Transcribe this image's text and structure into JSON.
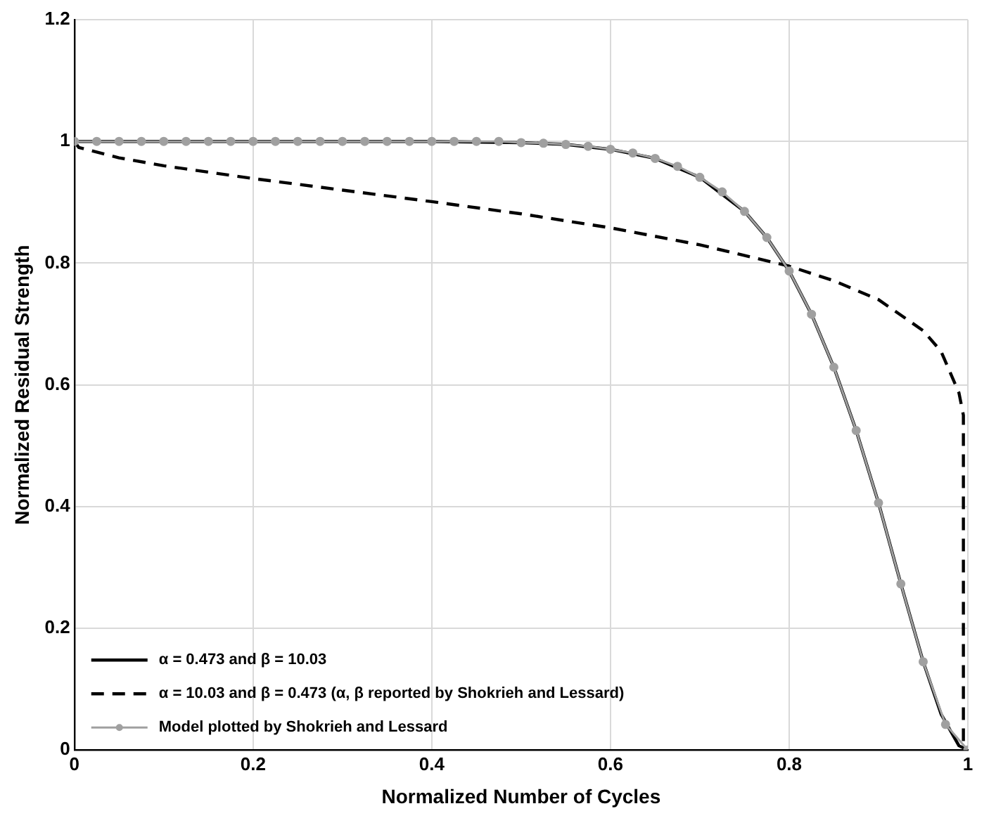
{
  "chart_data": {
    "type": "line",
    "xlabel": "Normalized Number of Cycles",
    "ylabel": "Normalized Residual Strength",
    "xlim": [
      0,
      1
    ],
    "ylim": [
      0,
      1.2
    ],
    "xticks": [
      0,
      0.2,
      0.4,
      0.6,
      0.8,
      1
    ],
    "yticks": [
      0,
      0.2,
      0.4,
      0.6,
      0.8,
      1,
      1.2
    ],
    "grid": true,
    "legend": "bottom left",
    "series": [
      {
        "name": "α = 0.473 and β = 10.03",
        "color": "#000000",
        "line_style": "solid",
        "marker": "none",
        "x": [
          0,
          0.1,
          0.2,
          0.3,
          0.4,
          0.5,
          0.55,
          0.6,
          0.65,
          0.7,
          0.75,
          0.775,
          0.8,
          0.825,
          0.85,
          0.875,
          0.9,
          0.925,
          0.95,
          0.97,
          0.99,
          1
        ],
        "values": [
          1,
          1,
          1,
          1,
          1,
          0.998,
          0.995,
          0.987,
          0.972,
          0.941,
          0.885,
          0.842,
          0.787,
          0.716,
          0.629,
          0.525,
          0.406,
          0.273,
          0.145,
          0.059,
          0.007,
          0
        ]
      },
      {
        "name": "α = 10.03 and β = 0.473 (α, β reported by Shokrieh and Lessard)",
        "color": "#000000",
        "line_style": "dashed",
        "marker": "none",
        "x": [
          0,
          0.005,
          0.05,
          0.1,
          0.2,
          0.3,
          0.4,
          0.5,
          0.6,
          0.7,
          0.8,
          0.85,
          0.9,
          0.95,
          0.97,
          0.99,
          0.995,
          0.995
        ],
        "values": [
          1,
          0.99,
          0.973,
          0.96,
          0.939,
          0.92,
          0.901,
          0.881,
          0.858,
          0.83,
          0.795,
          0.771,
          0.74,
          0.689,
          0.655,
          0.587,
          0.55,
          0
        ]
      },
      {
        "name": "Model plotted by Shokrieh and Lessard",
        "color": "#a0a0a0",
        "line_style": "solid",
        "marker": "circle",
        "x": [
          0,
          0.025,
          0.05,
          0.075,
          0.1,
          0.125,
          0.15,
          0.175,
          0.2,
          0.225,
          0.25,
          0.275,
          0.3,
          0.325,
          0.35,
          0.375,
          0.4,
          0.425,
          0.45,
          0.475,
          0.5,
          0.525,
          0.55,
          0.575,
          0.6,
          0.625,
          0.65,
          0.675,
          0.7,
          0.725,
          0.75,
          0.775,
          0.8,
          0.825,
          0.85,
          0.875,
          0.9,
          0.925,
          0.95,
          0.975,
          1
        ],
        "values": [
          1,
          1,
          1,
          1,
          1,
          1,
          1,
          1,
          1,
          1,
          1,
          1,
          1,
          1,
          1,
          1,
          1,
          1,
          1,
          1,
          0.998,
          0.997,
          0.995,
          0.992,
          0.987,
          0.981,
          0.972,
          0.959,
          0.941,
          0.917,
          0.885,
          0.842,
          0.787,
          0.716,
          0.629,
          0.525,
          0.406,
          0.273,
          0.145,
          0.042,
          0
        ]
      }
    ]
  }
}
